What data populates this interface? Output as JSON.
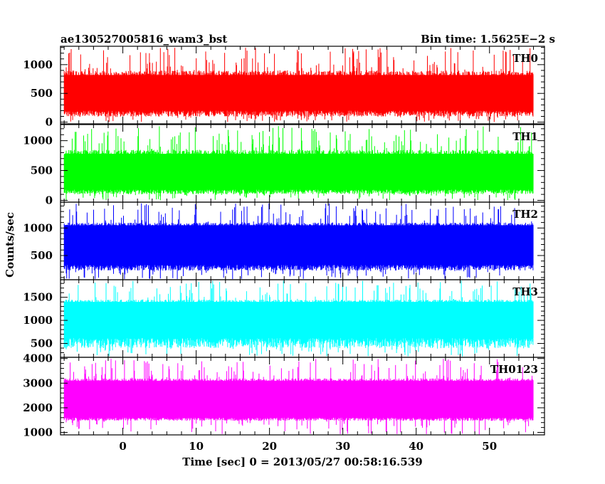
{
  "chart_data": {
    "type": "line",
    "title_left": "ae130527005816_wam3_bst",
    "title_right": "Bin time: 1.5625E−2 s",
    "xlabel": "Time [sec] 0 = 2013/05/27 00:58:16.539",
    "ylabel": "Counts/sec",
    "xlim": [
      -8.5,
      57.5
    ],
    "data_xlim": [
      -8,
      56
    ],
    "bin_time": 0.015625,
    "x_ticks": [
      0,
      10,
      20,
      30,
      40,
      50
    ],
    "x_tick_labels": [
      "0",
      "10",
      "20",
      "30",
      "40",
      "50"
    ],
    "grid": false,
    "panels": [
      {
        "name": "TH0",
        "color": "#ff0000",
        "ylim": [
          -30,
          1320
        ],
        "y_ticks": [
          0,
          500,
          1000
        ],
        "y_tick_labels": [
          "0",
          "500",
          "1000"
        ],
        "trace": {
          "fill_low": 200,
          "fill_high": 820,
          "peak_min": 900,
          "peak_max": 1300,
          "trough_min": 0,
          "trough_max": 120
        }
      },
      {
        "name": "TH1",
        "color": "#00ff00",
        "ylim": [
          -30,
          1270
        ],
        "y_ticks": [
          0,
          500,
          1000
        ],
        "y_tick_labels": [
          "0",
          "500",
          "1000"
        ],
        "trace": {
          "fill_low": 180,
          "fill_high": 780,
          "peak_min": 850,
          "peak_max": 1250,
          "trough_min": 0,
          "trough_max": 120
        }
      },
      {
        "name": "TH2",
        "color": "#0000ff",
        "ylim": [
          60,
          1470
        ],
        "y_ticks": [
          500,
          1000
        ],
        "y_tick_labels": [
          "500",
          "1000"
        ],
        "trace": {
          "fill_low": 330,
          "fill_high": 1050,
          "peak_min": 1100,
          "peak_max": 1450,
          "trough_min": 70,
          "trough_max": 250
        }
      },
      {
        "name": "TH3",
        "color": "#00ffff",
        "ylim": [
          200,
          1880
        ],
        "y_ticks": [
          500,
          1000,
          1500
        ],
        "y_tick_labels": [
          "500",
          "1000",
          "1500"
        ],
        "trace": {
          "fill_low": 620,
          "fill_high": 1400,
          "peak_min": 1450,
          "peak_max": 1870,
          "trough_min": 220,
          "trough_max": 450
        }
      },
      {
        "name": "TH0123",
        "color": "#ff00ff",
        "ylim": [
          900,
          4050
        ],
        "y_ticks": [
          1000,
          2000,
          3000,
          4000
        ],
        "y_tick_labels": [
          "1000",
          "2000",
          "3000",
          "4000"
        ],
        "trace": {
          "fill_low": 1600,
          "fill_high": 3100,
          "peak_min": 3200,
          "peak_max": 4000,
          "trough_min": 920,
          "trough_max": 1500
        }
      }
    ]
  }
}
